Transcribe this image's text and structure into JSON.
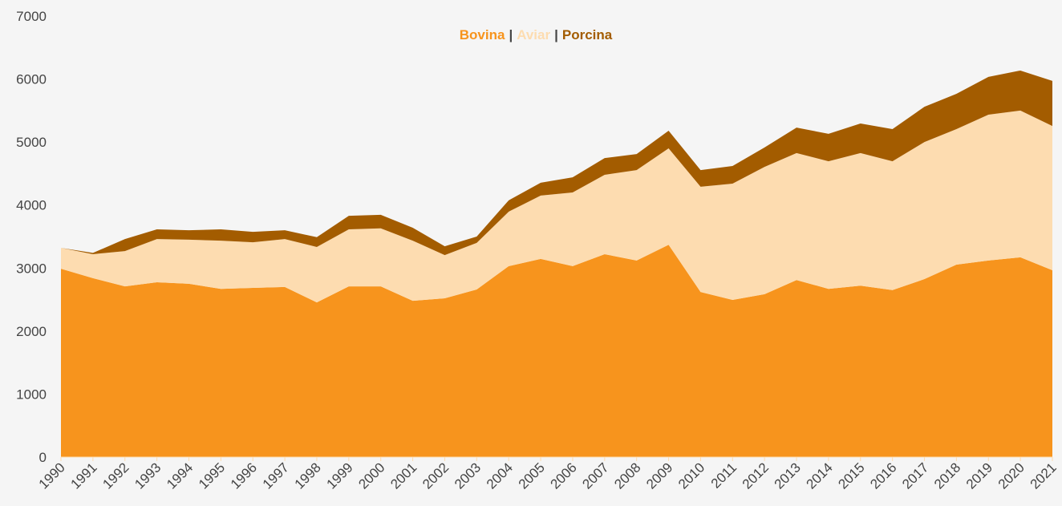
{
  "chart_data": {
    "type": "stacked-area",
    "categories": [
      "1990",
      "1991",
      "1992",
      "1993",
      "1994",
      "1995",
      "1996",
      "1997",
      "1998",
      "1999",
      "2000",
      "2001",
      "2002",
      "2003",
      "2004",
      "2005",
      "2006",
      "2007",
      "2008",
      "2009",
      "2010",
      "2011",
      "2012",
      "2013",
      "2014",
      "2015",
      "2016",
      "2017",
      "2018",
      "2019",
      "2020",
      "2021"
    ],
    "legend_separator": "|",
    "series": [
      {
        "name": "Bovina",
        "color": "#f7941d",
        "values": [
          2990,
          2840,
          2710,
          2775,
          2750,
          2670,
          2685,
          2700,
          2455,
          2710,
          2710,
          2480,
          2520,
          2660,
          3030,
          3145,
          3030,
          3220,
          3120,
          3370,
          2620,
          2495,
          2585,
          2810,
          2670,
          2720,
          2650,
          2825,
          3055,
          3120,
          3170,
          2965
        ]
      },
      {
        "name": "Aviar",
        "color": "#fddcb0",
        "values": [
          330,
          380,
          560,
          685,
          700,
          765,
          725,
          760,
          880,
          905,
          920,
          955,
          685,
          740,
          865,
          1005,
          1170,
          1260,
          1435,
          1530,
          1670,
          1845,
          2020,
          2015,
          2025,
          2105,
          2045,
          2175,
          2150,
          2315,
          2330,
          2290
        ]
      },
      {
        "name": "Porcina",
        "color": "#a35c00",
        "values": [
          0,
          20,
          190,
          155,
          150,
          180,
          165,
          140,
          155,
          215,
          215,
          205,
          140,
          100,
          180,
          205,
          240,
          265,
          255,
          280,
          265,
          280,
          310,
          405,
          435,
          470,
          510,
          560,
          560,
          600,
          635,
          715
        ]
      }
    ],
    "ylim": [
      0,
      7000
    ],
    "yticks": [
      0,
      1000,
      2000,
      3000,
      4000,
      5000,
      6000,
      7000
    ]
  }
}
